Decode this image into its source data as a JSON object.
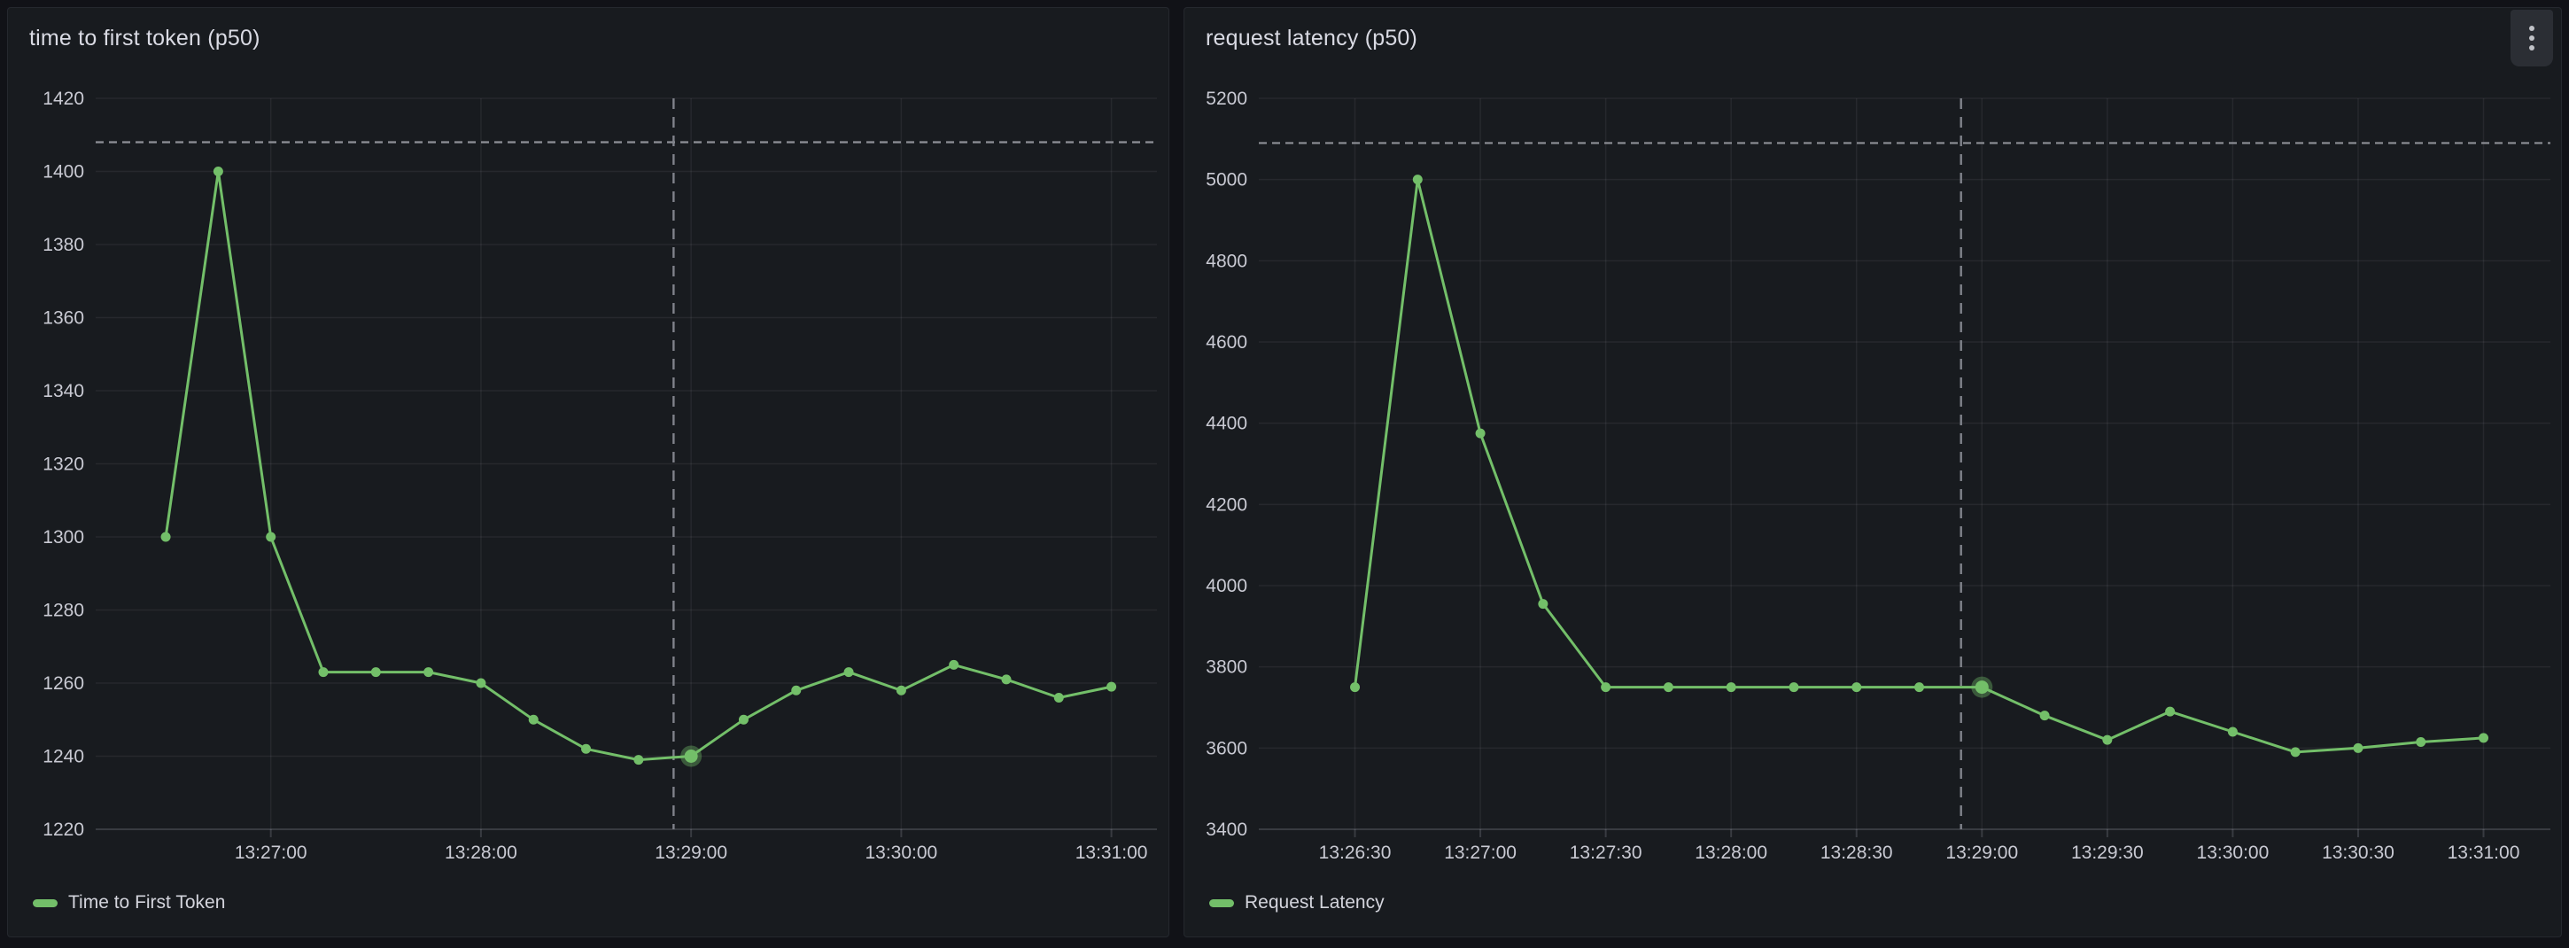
{
  "theme": {
    "page_bg": "#111217",
    "panel_bg": "#181b1f",
    "panel_border": "#25282e",
    "title_color": "#d9dae3",
    "tick_label_color": "#c9cad3",
    "grid_color": "rgba(204,204,220,0.08)",
    "axis_line_color": "rgba(204,204,220,0.18)",
    "accent_green": "#73bf69",
    "highlight_halo": "rgba(115,191,105,0.38)",
    "crosshair_color": "#80838b",
    "reference_line_color": "#8e9097",
    "menu_button_bg": "#2b2e34",
    "menu_dot_color": "#c0c2c7"
  },
  "panels": [
    {
      "menu_button_visible": false
    },
    {
      "menu_button_visible": true,
      "menu_icon": "kebab-vertical-icon"
    }
  ],
  "chart_data": [
    {
      "type": "line",
      "title": "time to first token (p50)",
      "series": [
        {
          "name": "Time to First Token",
          "color": "#73bf69",
          "values": [
            1300,
            1400,
            1300,
            1263,
            1263,
            1263,
            1260,
            1250,
            1242,
            1239,
            1240,
            1250,
            1258,
            1263,
            1258,
            1265,
            1261,
            1256,
            1259
          ]
        }
      ],
      "x": [
        "13:26:30",
        "13:26:45",
        "13:27:00",
        "13:27:15",
        "13:27:30",
        "13:27:45",
        "13:28:00",
        "13:28:15",
        "13:28:30",
        "13:28:45",
        "13:29:00",
        "13:29:15",
        "13:29:30",
        "13:29:45",
        "13:30:00",
        "13:30:15",
        "13:30:30",
        "13:30:45",
        "13:31:00"
      ],
      "x_ticks": [
        "13:27:00",
        "13:28:00",
        "13:29:00",
        "13:30:00",
        "13:31:00"
      ],
      "x_range": {
        "start": "13:26:10",
        "end": "13:31:13"
      },
      "ylim": [
        1220,
        1420
      ],
      "y_ticks": [
        1220,
        1240,
        1260,
        1280,
        1300,
        1320,
        1340,
        1360,
        1380,
        1400,
        1420
      ],
      "grid": true,
      "legend_position": "bottom-left",
      "reference_line_value": 1408,
      "crosshair_time": "13:28:55",
      "highlighted_point": {
        "time": "13:29:00",
        "value": 1240
      }
    },
    {
      "type": "line",
      "title": "request latency (p50)",
      "series": [
        {
          "name": "Request Latency",
          "color": "#73bf69",
          "values": [
            3750,
            5000,
            4375,
            3955,
            3750,
            3750,
            3750,
            3750,
            3750,
            3750,
            3750,
            3680,
            3620,
            3690,
            3640,
            3590,
            3600,
            3615,
            3625
          ]
        }
      ],
      "x": [
        "13:26:30",
        "13:26:45",
        "13:27:00",
        "13:27:15",
        "13:27:30",
        "13:27:45",
        "13:28:00",
        "13:28:15",
        "13:28:30",
        "13:28:45",
        "13:29:00",
        "13:29:15",
        "13:29:30",
        "13:29:45",
        "13:30:00",
        "13:30:15",
        "13:30:30",
        "13:30:45",
        "13:31:00"
      ],
      "x_ticks": [
        "13:26:30",
        "13:27:00",
        "13:27:30",
        "13:28:00",
        "13:28:30",
        "13:29:00",
        "13:29:30",
        "13:30:00",
        "13:30:30",
        "13:31:00"
      ],
      "x_range": {
        "start": "13:26:07",
        "end": "13:31:16"
      },
      "ylim": [
        3400,
        5200
      ],
      "y_ticks": [
        3400,
        3600,
        3800,
        4000,
        4200,
        4400,
        4600,
        4800,
        5000,
        5200
      ],
      "grid": true,
      "legend_position": "bottom-left",
      "reference_line_value": 5090,
      "crosshair_time": "13:28:55",
      "highlighted_point": {
        "time": "13:29:00",
        "value": 3750
      }
    }
  ]
}
